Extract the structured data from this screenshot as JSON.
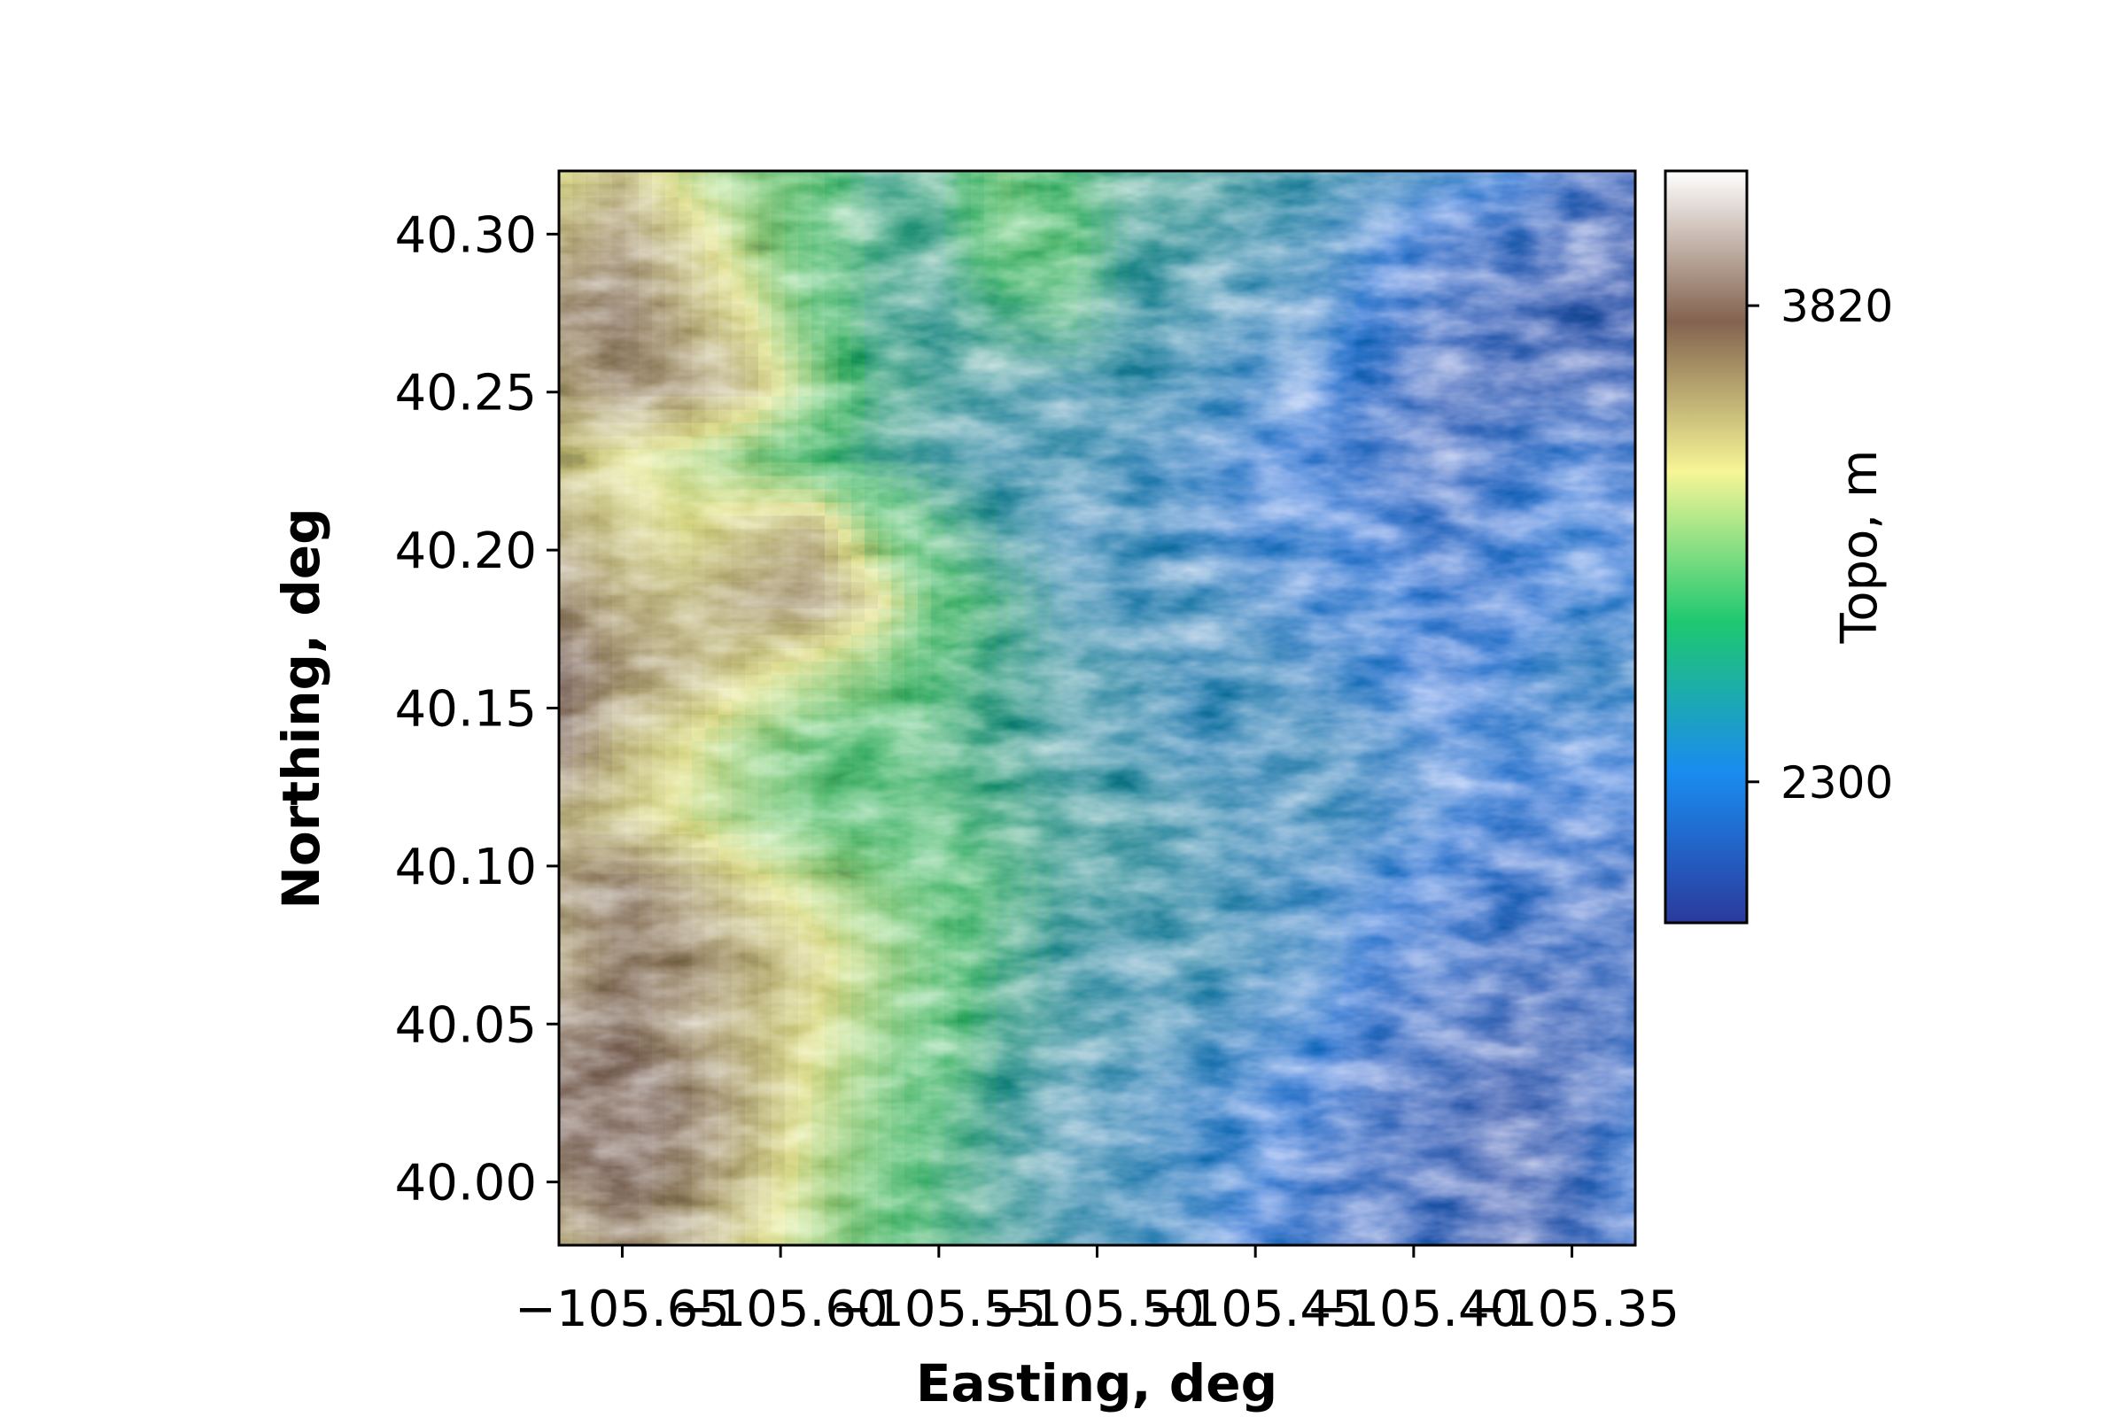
{
  "chart_data": {
    "type": "heatmap",
    "title": "",
    "xlabel": "Easting, deg",
    "ylabel": "Northing, deg",
    "x_ticks": [
      -105.65,
      -105.6,
      -105.55,
      -105.5,
      -105.45,
      -105.4,
      -105.35
    ],
    "x_tick_labels": [
      "−105.65",
      "−105.60",
      "−105.55",
      "−105.50",
      "−105.45",
      "−105.40",
      "−105.35"
    ],
    "y_ticks": [
      40.0,
      40.05,
      40.1,
      40.15,
      40.2,
      40.25,
      40.3
    ],
    "y_tick_labels": [
      "40.00",
      "40.05",
      "40.10",
      "40.15",
      "40.20",
      "40.25",
      "40.30"
    ],
    "xlim": [
      -105.67,
      -105.33
    ],
    "ylim": [
      39.98,
      40.32
    ],
    "colorbar": {
      "label": "Topo, m",
      "range": [
        1850,
        4250
      ],
      "ticks": [
        2300,
        3820
      ],
      "tick_labels": [
        "2300",
        "3820"
      ],
      "colormap": "terrain",
      "colors": [
        "#2b3a9c",
        "#1a8cf0",
        "#1ec870",
        "#f6f696",
        "#83634f",
        "#ffffff"
      ]
    },
    "relief_grid": {
      "description_rows": "north to south",
      "values": [
        [
          3300,
          3450,
          3200,
          3050,
          2950,
          2650,
          2700,
          3000,
          2800,
          2650,
          2600,
          2550,
          2500,
          2450,
          2400,
          2350,
          2200,
          2150
        ],
        [
          3500,
          3600,
          3400,
          3150,
          2900,
          2700,
          2650,
          2950,
          2900,
          2600,
          2550,
          2500,
          2450,
          2350,
          2250,
          2200,
          2150,
          2100
        ],
        [
          3650,
          3700,
          3500,
          3300,
          2950,
          2650,
          2600,
          2700,
          2750,
          2550,
          2500,
          2450,
          2400,
          2300,
          2200,
          2150,
          2100,
          2100
        ],
        [
          3550,
          3650,
          3600,
          3450,
          3100,
          2700,
          2600,
          2550,
          2500,
          2500,
          2450,
          2400,
          2350,
          2250,
          2150,
          2150,
          2150,
          2150
        ],
        [
          3400,
          3300,
          3200,
          3050,
          2850,
          2650,
          2550,
          2500,
          2500,
          2450,
          2400,
          2350,
          2300,
          2250,
          2200,
          2250,
          2300,
          2250
        ],
        [
          3500,
          3400,
          3300,
          3400,
          3500,
          3050,
          2750,
          2550,
          2450,
          2450,
          2400,
          2350,
          2350,
          2300,
          2250,
          2300,
          2350,
          2300
        ],
        [
          3650,
          3500,
          3450,
          3550,
          3600,
          3350,
          2900,
          2700,
          2500,
          2450,
          2450,
          2400,
          2350,
          2350,
          2300,
          2300,
          2350,
          2350
        ],
        [
          3800,
          3600,
          3500,
          3350,
          3200,
          3050,
          2800,
          2650,
          2550,
          2500,
          2450,
          2450,
          2400,
          2350,
          2300,
          2350,
          2400,
          2400
        ],
        [
          3750,
          3450,
          3300,
          3100,
          2950,
          2850,
          2750,
          2650,
          2550,
          2500,
          2450,
          2450,
          2450,
          2400,
          2350,
          2350,
          2350,
          2350
        ],
        [
          3500,
          3400,
          3250,
          3100,
          2950,
          2850,
          2800,
          2700,
          2600,
          2550,
          2500,
          2450,
          2450,
          2400,
          2350,
          2300,
          2300,
          2300
        ],
        [
          3600,
          3700,
          3550,
          3350,
          3200,
          3050,
          2900,
          2750,
          2600,
          2550,
          2500,
          2450,
          2400,
          2350,
          2300,
          2250,
          2250,
          2200
        ],
        [
          3550,
          3700,
          3650,
          3500,
          3350,
          3150,
          2950,
          2700,
          2550,
          2500,
          2500,
          2450,
          2400,
          2300,
          2250,
          2200,
          2200,
          2200
        ],
        [
          3700,
          3750,
          3600,
          3450,
          3300,
          3100,
          2900,
          2650,
          2550,
          2500,
          2450,
          2400,
          2350,
          2250,
          2200,
          2150,
          2150,
          2200
        ],
        [
          3800,
          3850,
          3700,
          3500,
          3250,
          3050,
          2800,
          2600,
          2500,
          2450,
          2400,
          2350,
          2300,
          2200,
          2150,
          2100,
          2150,
          2250
        ],
        [
          3700,
          3800,
          3650,
          3450,
          3200,
          3000,
          2750,
          2600,
          2500,
          2450,
          2400,
          2350,
          2250,
          2200,
          2150,
          2100,
          2150,
          2300
        ],
        [
          3500,
          3650,
          3550,
          3350,
          3150,
          2950,
          2750,
          2600,
          2500,
          2450,
          2400,
          2300,
          2250,
          2200,
          2150,
          2100,
          2150,
          2250
        ]
      ]
    }
  }
}
